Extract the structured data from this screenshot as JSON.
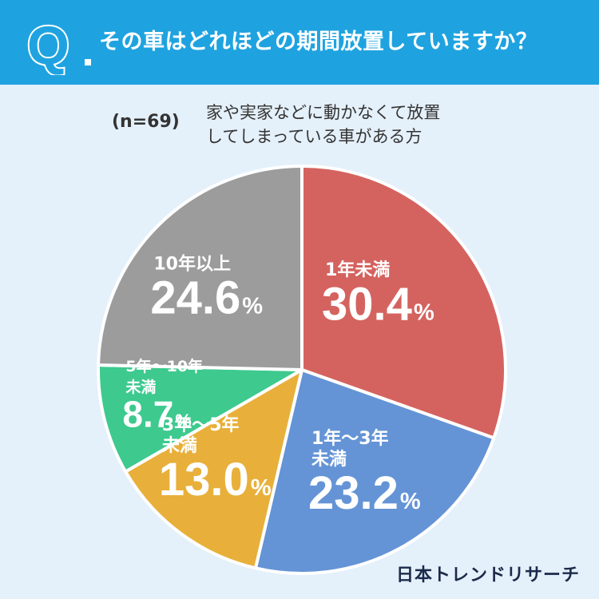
{
  "header": {
    "q_letter": "Q",
    "question": "その車はどれほどの期間放置していますか？",
    "bg_color": "#1fa3e0"
  },
  "sample": {
    "n_label": "(n=69)",
    "desc_line1": "家や実家などに動かなくて放置",
    "desc_line2": "してしまっている車がある方"
  },
  "brand": {
    "name": "日本トレンドリサーチ"
  },
  "chart_data": {
    "type": "pie",
    "title": "その車はどれほどの期間放置していますか？",
    "start_angle_deg": 0,
    "direction": "clockwise",
    "slices": [
      {
        "label_lines": [
          "1年未満"
        ],
        "value": 30.4,
        "value_label": "30.4",
        "color": "#d4635f"
      },
      {
        "label_lines": [
          "1年〜3年",
          "未満"
        ],
        "value": 23.2,
        "value_label": "23.2",
        "color": "#6494d6"
      },
      {
        "label_lines": [
          "3年〜5年",
          "未満"
        ],
        "value": 13.0,
        "value_label": "13.0",
        "color": "#e8b03a"
      },
      {
        "label_lines": [
          "5年〜10年",
          "未満"
        ],
        "value": 8.7,
        "value_label": "8.7",
        "color": "#3ec98f"
      },
      {
        "label_lines": [
          "10年以上"
        ],
        "value": 24.6,
        "value_label": "24.6",
        "color": "#9c9c9c"
      }
    ],
    "unit": "%"
  }
}
